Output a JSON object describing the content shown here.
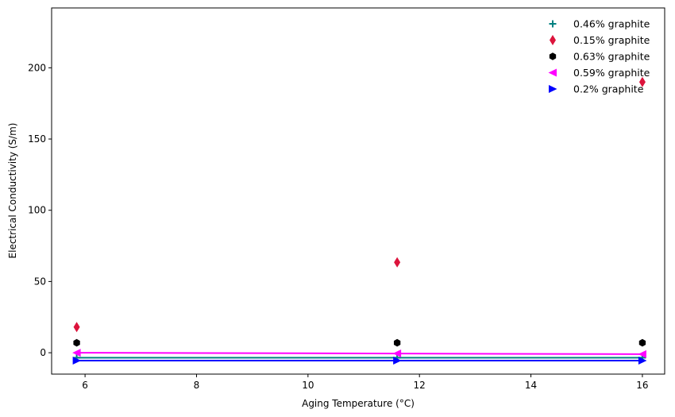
{
  "chart_data": {
    "type": "scatter",
    "xlabel": "Aging Temperature (°C)",
    "ylabel": "Electrical Conductivity (S/m)",
    "xlim": [
      5.4,
      16.4
    ],
    "ylim": [
      -15,
      242
    ],
    "xticks": [
      6,
      8,
      10,
      12,
      14,
      16
    ],
    "yticks": [
      0,
      50,
      100,
      150,
      200
    ],
    "grid": false,
    "legend_position": "top-right",
    "series": [
      {
        "name": "0.46% graphite",
        "color": "#008080",
        "marker": "plus",
        "x": [
          5.85,
          11.6,
          16.0
        ],
        "y": [
          -3.5,
          -3.5,
          -3.5
        ],
        "fit": {
          "x": [
            5.85,
            16.0
          ],
          "y": [
            -3.5,
            -3.5
          ]
        }
      },
      {
        "name": "0.15% graphite",
        "color": "#dc143c",
        "marker": "thin-diamond",
        "x": [
          5.85,
          11.6,
          16.0
        ],
        "y": [
          18,
          63.5,
          190
        ]
      },
      {
        "name": "0.63% graphite",
        "color": "#000000",
        "marker": "hexagon",
        "x": [
          5.85,
          11.6,
          16.0
        ],
        "y": [
          7,
          7,
          7
        ]
      },
      {
        "name": "0.59% graphite",
        "color": "#ff00ff",
        "marker": "triangle-left",
        "x": [
          5.85,
          11.6,
          16.0
        ],
        "y": [
          0,
          -0.5,
          -1
        ],
        "fit": {
          "x": [
            5.85,
            16.0
          ],
          "y": [
            0,
            -1
          ]
        }
      },
      {
        "name": "0.2% graphite",
        "color": "#0000ff",
        "marker": "triangle-right",
        "x": [
          5.85,
          11.6,
          16.0
        ],
        "y": [
          -5.5,
          -5.5,
          -5.5
        ],
        "fit": {
          "x": [
            5.85,
            16.0
          ],
          "y": [
            -5.5,
            -5.5
          ]
        }
      }
    ]
  }
}
